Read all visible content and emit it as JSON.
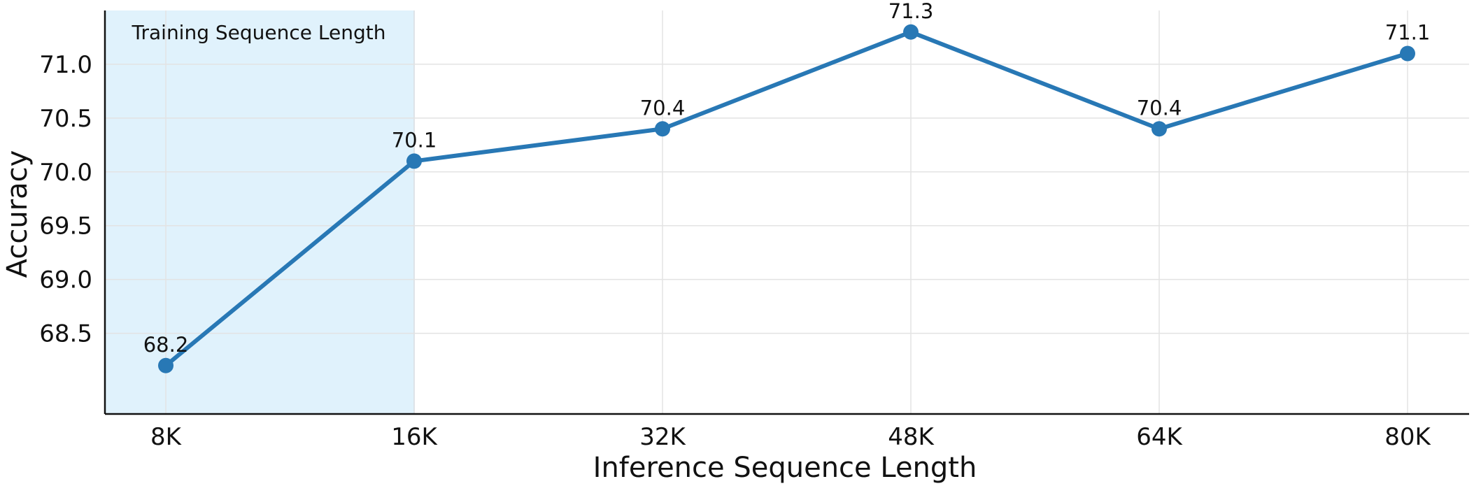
{
  "chart_data": {
    "type": "line",
    "categories": [
      "8K",
      "16K",
      "32K",
      "48K",
      "64K",
      "80K"
    ],
    "series": [
      {
        "values": [
          68.2,
          70.1,
          70.4,
          71.3,
          70.4,
          71.1
        ]
      }
    ],
    "data_labels": [
      "68.2",
      "70.1",
      "70.4",
      "71.3",
      "70.4",
      "71.1"
    ],
    "xlabel": "Inference Sequence Length",
    "ylabel": "Accuracy",
    "yticks": [
      "68.5",
      "69.0",
      "69.5",
      "70.0",
      "70.5",
      "71.0"
    ],
    "ylim": [
      67.75,
      71.5
    ],
    "shaded_region": {
      "label": "Training Sequence Length",
      "from": "8K",
      "to": "16K"
    },
    "grid": true,
    "colors": {
      "line": "#2878b5",
      "band": "#e0f2fc",
      "band_edge": "#a9d3ee"
    }
  }
}
